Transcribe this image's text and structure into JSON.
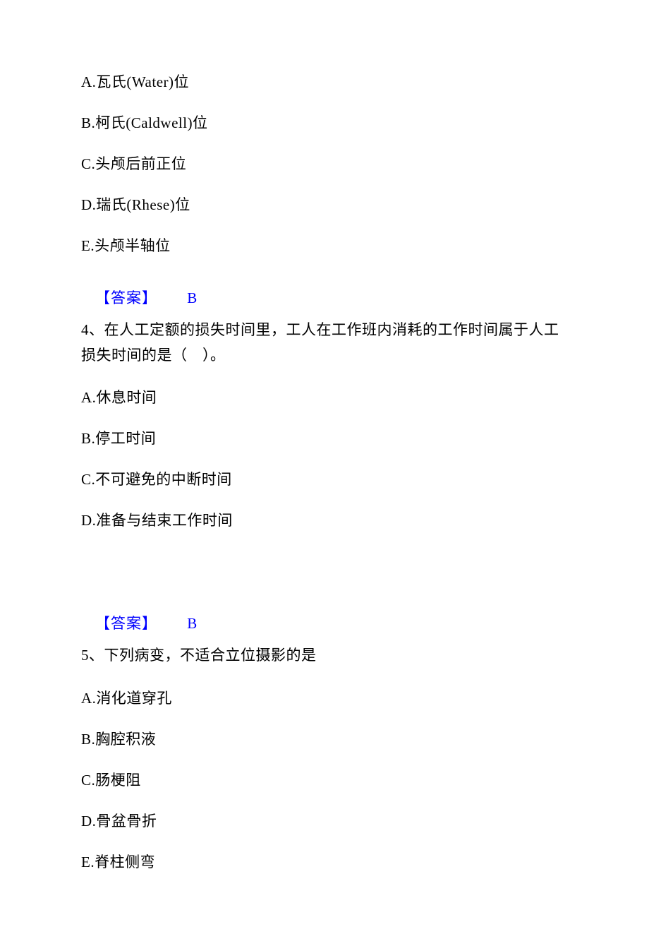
{
  "colors": {
    "text": "#000000",
    "answer": "#0000ff",
    "background": "#ffffff"
  },
  "typography": {
    "font_family": "SimSun",
    "option_fontsize": 21,
    "question_fontsize": 21,
    "answer_fontsize": 21,
    "line_spacing": 28
  },
  "q3_options": {
    "a": "A.瓦氏(Water)位",
    "b": "B.柯氏(Caldwell)位",
    "c": "C.头颅后前正位",
    "d": "D.瑞氏(Rhese)位",
    "e": "E.头颅半轴位"
  },
  "q3_answer": {
    "label": "【答案】",
    "value": "B"
  },
  "q4_stem": "4、在人工定额的损失时间里，工人在工作班内消耗的工作时间属于人工损失时间的是（　）。",
  "q4_options": {
    "a": "A.休息时间",
    "b": "B.停工时间",
    "c": "C.不可避免的中断时间",
    "d": "D.准备与结束工作时间"
  },
  "q4_answer": {
    "label": "【答案】",
    "value": "B"
  },
  "q5_stem": "5、下列病变，不适合立位摄影的是",
  "q5_options": {
    "a": "A.消化道穿孔",
    "b": "B.胸腔积液",
    "c": "C.肠梗阻",
    "d": "D.骨盆骨折",
    "e": "E.脊柱侧弯"
  }
}
